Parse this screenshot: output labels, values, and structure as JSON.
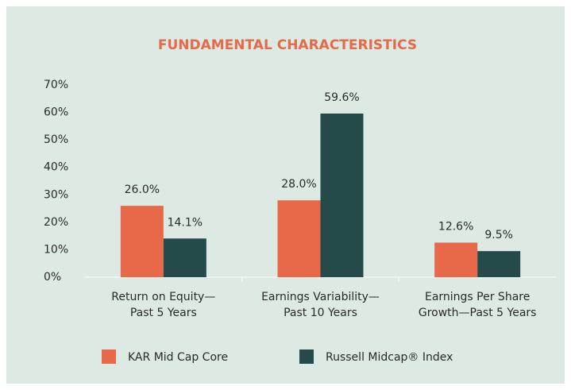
{
  "chart_data": {
    "type": "bar",
    "title": "FUNDAMENTAL CHARACTERISTICS",
    "categories": [
      "Return on Equity—\nPast 5 Years",
      "Earnings Variability—\nPast 10 Years",
      "Earnings Per Share\nGrowth—Past 5 Years"
    ],
    "series": [
      {
        "name": "KAR Mid Cap Core",
        "color": "#e8694a",
        "values": [
          26.0,
          28.0,
          12.6
        ],
        "value_labels": [
          "26.0%",
          "28.0%",
          "12.6%"
        ]
      },
      {
        "name": "Russell Midcap® Index",
        "color": "#244a4a",
        "values": [
          14.1,
          59.6,
          9.5
        ],
        "value_labels": [
          "14.1%",
          "59.6%",
          "9.5%"
        ]
      }
    ],
    "ylim": [
      0,
      70
    ],
    "yticks": [
      {
        "value": 0,
        "label": "0%"
      },
      {
        "value": 10,
        "label": "10%"
      },
      {
        "value": 20,
        "label": "20%"
      },
      {
        "value": 30,
        "label": "30%"
      },
      {
        "value": 40,
        "label": "40%"
      },
      {
        "value": 50,
        "label": "50%"
      },
      {
        "value": 60,
        "label": "60%"
      },
      {
        "value": 70,
        "label": "70%"
      }
    ],
    "grid": false,
    "legend": "bottom"
  }
}
